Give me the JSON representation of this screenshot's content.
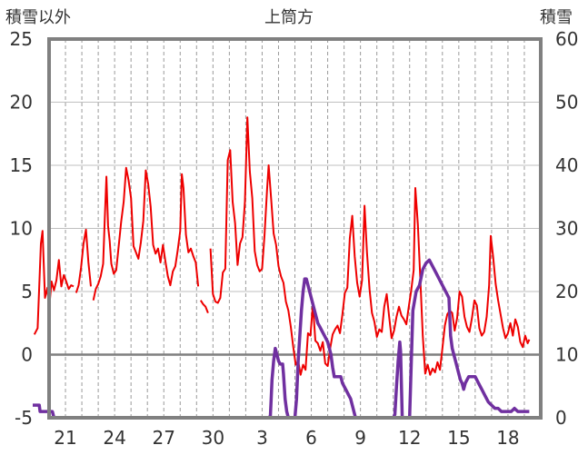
{
  "chart_data": {
    "type": "line",
    "title": "上筒方",
    "left_axis_label": "積雪以外",
    "right_axis_label": "積雪",
    "y_left": {
      "min": -5,
      "max": 25,
      "ticks": [
        -5,
        0,
        5,
        10,
        15,
        20,
        25
      ]
    },
    "y_right": {
      "min": 0,
      "max": 60,
      "ticks": [
        0,
        10,
        20,
        30,
        40,
        50,
        60
      ]
    },
    "x": {
      "min": 0,
      "max": 30,
      "tick_positions": [
        1,
        4,
        7,
        10,
        13,
        16,
        19,
        22,
        25,
        28
      ],
      "tick_labels": [
        "21",
        "24",
        "27",
        "30",
        "3",
        "6",
        "9",
        "12",
        "15",
        "18"
      ]
    },
    "grid": {
      "vertical": "dashed-daily",
      "horizontal": "solid",
      "zero_line": true
    },
    "colors": {
      "temperature": "#ee0000",
      "snow": "#7030a0",
      "grid": "#bfbfbf",
      "frame": "#808080",
      "zero": "#7f7f7f"
    },
    "series": [
      {
        "axis": "left",
        "points": [
          [
            -0.9,
            1.6
          ],
          [
            -0.7,
            2.1
          ],
          [
            -0.5,
            8.8
          ],
          [
            -0.4,
            9.8
          ],
          [
            -0.25,
            4.5
          ],
          [
            -0.1,
            5.3
          ],
          [
            0,
            3.6
          ],
          [
            0.15,
            5.8
          ],
          [
            0.3,
            5.1
          ],
          [
            0.45,
            5.9
          ],
          [
            0.6,
            7.5
          ],
          [
            0.75,
            5.4
          ],
          [
            0.9,
            6.3
          ],
          [
            1.05,
            5.8
          ],
          [
            1.2,
            5.2
          ],
          [
            1.35,
            5.5
          ],
          [
            1.5,
            5.4
          ],
          [
            1.65,
            4.9
          ],
          [
            1.8,
            5.5
          ],
          [
            1.95,
            6.9
          ],
          [
            2.1,
            8.8
          ],
          [
            2.25,
            9.9
          ],
          [
            2.4,
            7.3
          ],
          [
            2.55,
            5.4
          ],
          [
            2.7,
            4.3
          ],
          [
            2.85,
            5.2
          ],
          [
            3.0,
            5.6
          ],
          [
            3.15,
            6.2
          ],
          [
            3.3,
            7.2
          ],
          [
            3.4,
            10.8
          ],
          [
            3.5,
            14.1
          ],
          [
            3.6,
            10.2
          ],
          [
            3.7,
            9.0
          ],
          [
            3.8,
            7.2
          ],
          [
            3.95,
            6.4
          ],
          [
            4.1,
            6.7
          ],
          [
            4.25,
            8.6
          ],
          [
            4.4,
            10.5
          ],
          [
            4.55,
            12.1
          ],
          [
            4.7,
            14.8
          ],
          [
            4.85,
            13.8
          ],
          [
            5.0,
            12.4
          ],
          [
            5.15,
            8.6
          ],
          [
            5.3,
            8.1
          ],
          [
            5.45,
            7.6
          ],
          [
            5.6,
            8.9
          ],
          [
            5.75,
            10.6
          ],
          [
            5.9,
            14.6
          ],
          [
            6.05,
            13.5
          ],
          [
            6.2,
            11.7
          ],
          [
            6.35,
            8.7
          ],
          [
            6.5,
            8.0
          ],
          [
            6.65,
            8.4
          ],
          [
            6.8,
            7.3
          ],
          [
            6.95,
            8.7
          ],
          [
            7.1,
            7.4
          ],
          [
            7.25,
            6.2
          ],
          [
            7.4,
            5.5
          ],
          [
            7.55,
            6.6
          ],
          [
            7.7,
            7.0
          ],
          [
            7.85,
            8.3
          ],
          [
            8.0,
            9.8
          ],
          [
            8.1,
            14.3
          ],
          [
            8.2,
            13.2
          ],
          [
            8.35,
            9.5
          ],
          [
            8.5,
            8.1
          ],
          [
            8.65,
            8.4
          ],
          [
            8.8,
            7.8
          ],
          [
            8.95,
            7.3
          ],
          [
            9.1,
            5.4
          ],
          [
            9.25,
            4.3
          ],
          [
            9.4,
            4.0
          ],
          [
            9.55,
            3.8
          ],
          [
            9.7,
            3.3
          ],
          [
            9.85,
            8.4
          ],
          [
            10.0,
            4.8
          ],
          [
            10.15,
            4.2
          ],
          [
            10.3,
            4.1
          ],
          [
            10.45,
            4.5
          ],
          [
            10.6,
            6.5
          ],
          [
            10.75,
            6.8
          ],
          [
            10.9,
            15.4
          ],
          [
            11.05,
            16.2
          ],
          [
            11.2,
            12.1
          ],
          [
            11.35,
            10.4
          ],
          [
            11.5,
            7.1
          ],
          [
            11.65,
            8.8
          ],
          [
            11.8,
            9.3
          ],
          [
            11.95,
            12.1
          ],
          [
            12.1,
            18.8
          ],
          [
            12.25,
            14.5
          ],
          [
            12.4,
            12.4
          ],
          [
            12.55,
            8.2
          ],
          [
            12.7,
            7.1
          ],
          [
            12.85,
            6.6
          ],
          [
            13.0,
            6.8
          ],
          [
            13.15,
            9.5
          ],
          [
            13.3,
            13.0
          ],
          [
            13.4,
            15.0
          ],
          [
            13.55,
            12.3
          ],
          [
            13.7,
            9.6
          ],
          [
            13.85,
            8.7
          ],
          [
            14.0,
            7.0
          ],
          [
            14.15,
            6.2
          ],
          [
            14.3,
            5.7
          ],
          [
            14.45,
            4.2
          ],
          [
            14.6,
            3.5
          ],
          [
            14.75,
            2.2
          ],
          [
            14.9,
            0.6
          ],
          [
            15.05,
            -0.8
          ],
          [
            15.2,
            -0.5
          ],
          [
            15.35,
            -1.6
          ],
          [
            15.5,
            -0.8
          ],
          [
            15.65,
            -1.2
          ],
          [
            15.8,
            1.7
          ],
          [
            15.95,
            1.5
          ],
          [
            16.1,
            4.0
          ],
          [
            16.25,
            1.1
          ],
          [
            16.4,
            0.9
          ],
          [
            16.55,
            0.3
          ],
          [
            16.7,
            1.0
          ],
          [
            16.85,
            -0.7
          ],
          [
            17.0,
            -0.9
          ],
          [
            17.15,
            0.5
          ],
          [
            17.3,
            1.6
          ],
          [
            17.45,
            2.0
          ],
          [
            17.6,
            2.3
          ],
          [
            17.75,
            1.7
          ],
          [
            17.9,
            3.2
          ],
          [
            18.05,
            4.9
          ],
          [
            18.2,
            5.3
          ],
          [
            18.35,
            9.2
          ],
          [
            18.5,
            11.0
          ],
          [
            18.65,
            7.8
          ],
          [
            18.8,
            5.7
          ],
          [
            18.95,
            4.6
          ],
          [
            19.1,
            5.9
          ],
          [
            19.25,
            11.8
          ],
          [
            19.4,
            8.1
          ],
          [
            19.55,
            5.2
          ],
          [
            19.7,
            3.3
          ],
          [
            19.85,
            2.6
          ],
          [
            20.0,
            1.4
          ],
          [
            20.15,
            2.0
          ],
          [
            20.3,
            1.8
          ],
          [
            20.45,
            3.8
          ],
          [
            20.6,
            4.8
          ],
          [
            20.75,
            3.0
          ],
          [
            20.9,
            1.3
          ],
          [
            21.05,
            1.9
          ],
          [
            21.2,
            3.0
          ],
          [
            21.35,
            3.8
          ],
          [
            21.5,
            3.1
          ],
          [
            21.65,
            2.8
          ],
          [
            21.8,
            2.4
          ],
          [
            21.95,
            3.8
          ],
          [
            22.1,
            5.1
          ],
          [
            22.25,
            6.7
          ],
          [
            22.35,
            13.2
          ],
          [
            22.5,
            10.3
          ],
          [
            22.65,
            6.0
          ],
          [
            22.8,
            1.5
          ],
          [
            22.95,
            -1.5
          ],
          [
            23.1,
            -0.8
          ],
          [
            23.25,
            -1.6
          ],
          [
            23.4,
            -1.1
          ],
          [
            23.55,
            -1.4
          ],
          [
            23.7,
            -0.6
          ],
          [
            23.85,
            -1.2
          ],
          [
            24.0,
            0.5
          ],
          [
            24.15,
            2.3
          ],
          [
            24.3,
            3.2
          ],
          [
            24.45,
            3.5
          ],
          [
            24.6,
            3.3
          ],
          [
            24.75,
            1.9
          ],
          [
            24.9,
            2.9
          ],
          [
            25.05,
            5.0
          ],
          [
            25.2,
            4.6
          ],
          [
            25.35,
            3.0
          ],
          [
            25.5,
            2.2
          ],
          [
            25.65,
            1.8
          ],
          [
            25.8,
            2.9
          ],
          [
            25.95,
            4.3
          ],
          [
            26.1,
            3.9
          ],
          [
            26.25,
            2.1
          ],
          [
            26.4,
            1.5
          ],
          [
            26.55,
            1.8
          ],
          [
            26.7,
            3.0
          ],
          [
            26.85,
            5.5
          ],
          [
            26.95,
            9.4
          ],
          [
            27.1,
            7.7
          ],
          [
            27.25,
            5.6
          ],
          [
            27.4,
            4.3
          ],
          [
            27.55,
            3.2
          ],
          [
            27.7,
            2.1
          ],
          [
            27.85,
            1.3
          ],
          [
            28.0,
            1.7
          ],
          [
            28.15,
            2.5
          ],
          [
            28.3,
            1.5
          ],
          [
            28.45,
            2.8
          ],
          [
            28.6,
            2.2
          ],
          [
            28.75,
            1.0
          ],
          [
            28.9,
            0.6
          ],
          [
            29.05,
            1.5
          ],
          [
            29.2,
            0.9
          ],
          [
            29.3,
            1.2
          ]
        ],
        "gaps_after_x": [
          1.5,
          2.55,
          9.1,
          9.7
        ]
      },
      {
        "axis": "right",
        "points": [
          [
            -1,
            2
          ],
          [
            -0.6,
            2
          ],
          [
            -0.55,
            1
          ],
          [
            0.2,
            1
          ],
          [
            0.3,
            0
          ],
          [
            13.4,
            0
          ],
          [
            13.5,
            0.3
          ],
          [
            13.55,
            3
          ],
          [
            13.6,
            6
          ],
          [
            13.7,
            9
          ],
          [
            13.8,
            11
          ],
          [
            13.9,
            10
          ],
          [
            14.0,
            9
          ],
          [
            14.1,
            8.5
          ],
          [
            14.25,
            8.5
          ],
          [
            14.3,
            7
          ],
          [
            14.35,
            5
          ],
          [
            14.4,
            3
          ],
          [
            14.5,
            1
          ],
          [
            14.6,
            0
          ],
          [
            15.0,
            0
          ],
          [
            15.1,
            3
          ],
          [
            15.2,
            9
          ],
          [
            15.3,
            13
          ],
          [
            15.4,
            17
          ],
          [
            15.5,
            20
          ],
          [
            15.6,
            22
          ],
          [
            15.7,
            22
          ],
          [
            15.8,
            21
          ],
          [
            15.9,
            20
          ],
          [
            16.0,
            19
          ],
          [
            16.1,
            18
          ],
          [
            16.2,
            17
          ],
          [
            16.3,
            16
          ],
          [
            16.4,
            15
          ],
          [
            16.5,
            14.5
          ],
          [
            16.6,
            14
          ],
          [
            16.7,
            13.5
          ],
          [
            16.8,
            13
          ],
          [
            16.9,
            12.5
          ],
          [
            17.0,
            12
          ],
          [
            17.1,
            11
          ],
          [
            17.2,
            10
          ],
          [
            17.3,
            8
          ],
          [
            17.4,
            6.5
          ],
          [
            17.5,
            6.5
          ],
          [
            17.6,
            6.5
          ],
          [
            17.8,
            6.5
          ],
          [
            17.9,
            5.5
          ],
          [
            18.0,
            5
          ],
          [
            18.1,
            4.5
          ],
          [
            18.2,
            4
          ],
          [
            18.3,
            3.5
          ],
          [
            18.4,
            3
          ],
          [
            18.5,
            2
          ],
          [
            18.6,
            1
          ],
          [
            18.7,
            0
          ],
          [
            20.8,
            0
          ],
          [
            20.9,
            0
          ],
          [
            21.0,
            0
          ],
          [
            21.1,
            0.5
          ],
          [
            21.2,
            5
          ],
          [
            21.3,
            9
          ],
          [
            21.4,
            12
          ],
          [
            21.45,
            10.5
          ],
          [
            21.55,
            0
          ],
          [
            22.0,
            0
          ],
          [
            22.2,
            17
          ],
          [
            22.4,
            20
          ],
          [
            22.6,
            21
          ],
          [
            22.8,
            23.5
          ],
          [
            23.0,
            24.5
          ],
          [
            23.2,
            25
          ],
          [
            23.4,
            24
          ],
          [
            23.6,
            23
          ],
          [
            23.8,
            22
          ],
          [
            24.0,
            21
          ],
          [
            24.2,
            20
          ],
          [
            24.4,
            19
          ],
          [
            24.5,
            13
          ],
          [
            24.6,
            11
          ],
          [
            24.7,
            10
          ],
          [
            24.8,
            9
          ],
          [
            24.9,
            8
          ],
          [
            25.0,
            7
          ],
          [
            25.1,
            6
          ],
          [
            25.2,
            5.5
          ],
          [
            25.3,
            4.5
          ],
          [
            25.4,
            5.5
          ],
          [
            25.6,
            6.5
          ],
          [
            25.8,
            6.5
          ],
          [
            26.0,
            6.5
          ],
          [
            26.2,
            5.5
          ],
          [
            26.4,
            4.5
          ],
          [
            26.6,
            3.5
          ],
          [
            26.8,
            2.5
          ],
          [
            27.0,
            2
          ],
          [
            27.2,
            1.5
          ],
          [
            27.4,
            1.5
          ],
          [
            27.6,
            1
          ],
          [
            27.8,
            1
          ],
          [
            28.0,
            1
          ],
          [
            28.2,
            1
          ],
          [
            28.4,
            1.5
          ],
          [
            28.6,
            1
          ],
          [
            29.0,
            1
          ],
          [
            29.3,
            1
          ]
        ]
      }
    ]
  }
}
